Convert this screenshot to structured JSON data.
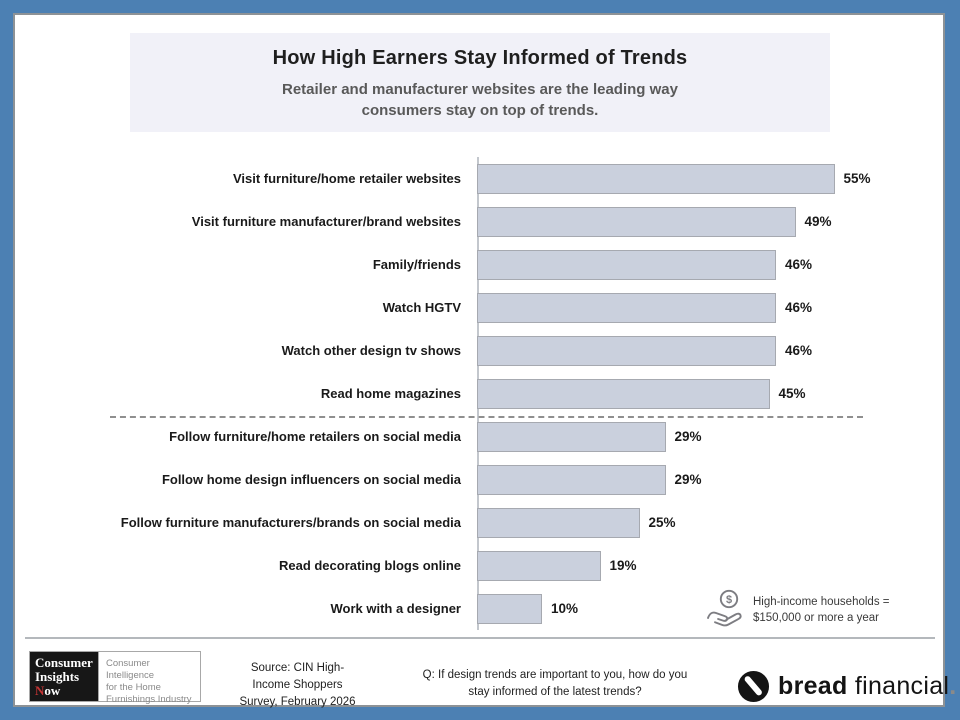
{
  "frame": {
    "border_color": "#4c80b3"
  },
  "header": {
    "title": "How High Earners Stay Informed of Trends",
    "subtitle_line1": "Retailer and manufacturer websites are the leading way",
    "subtitle_line2": "consumers stay on top of trends."
  },
  "chart_data": {
    "type": "bar",
    "orientation": "horizontal",
    "title": "How High Earners Stay Informed of Trends",
    "categories": [
      "Visit furniture/home retailer websites",
      "Visit furniture manufacturer/brand websites",
      "Family/friends",
      "Watch HGTV",
      "Watch other design tv shows",
      "Read home magazines",
      "Follow furniture/home retailers on social media",
      "Follow home design influencers on social media",
      "Follow furniture manufacturers/brands on social media",
      "Read decorating blogs online",
      "Work with a designer"
    ],
    "values": [
      55,
      49,
      46,
      46,
      46,
      45,
      29,
      29,
      25,
      19,
      10
    ],
    "value_suffix": "%",
    "xlim": [
      0,
      60
    ],
    "grid": false,
    "legend": false,
    "bar_color": "#cad0dd",
    "bar_border_color": "#a6a9b0",
    "separator_after_index": 5
  },
  "note": {
    "icon": "hand-coin-dollar-icon",
    "line1": "High-income households =",
    "line2": "$150,000 or more a year"
  },
  "footer": {
    "cin_logo": {
      "line1": "Consumer",
      "line2": "Insights",
      "line3_initial": "N",
      "line3_rest": "ow",
      "tagline_line1": "Consumer Intelligence",
      "tagline_line2": "for the Home",
      "tagline_line3": "Furnishings Industry"
    },
    "source_line1": "Source: CIN High-",
    "source_line2": "Income Shoppers",
    "source_line3": "Survey, February 2026",
    "question_line1": "Q: If design trends are important to you, how do you",
    "question_line2": "stay informed of the latest trends?",
    "brand": {
      "word1": "bread",
      "word2": "financial",
      "suffix": "."
    }
  }
}
